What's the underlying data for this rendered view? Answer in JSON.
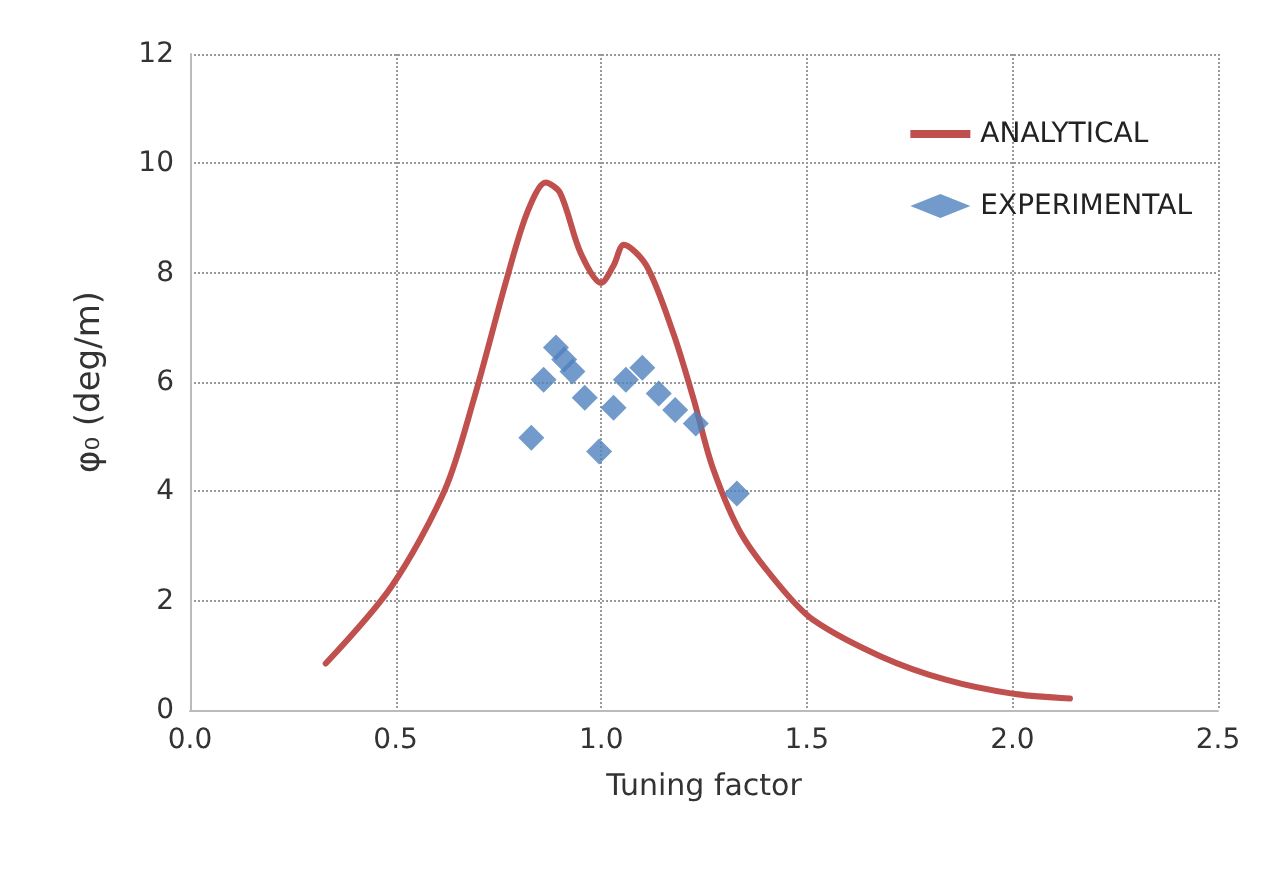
{
  "chart_data": {
    "type": "line",
    "xlabel": "Tuning factor",
    "ylabel": "φ₀ (deg/m)",
    "xlim": [
      0,
      2.5
    ],
    "xticks": [
      {
        "value": 0,
        "label": "0.0"
      },
      {
        "value": 0.5,
        "label": "0.5"
      },
      {
        "value": 1,
        "label": "1.0"
      },
      {
        "value": 1.5,
        "label": "1.5"
      },
      {
        "value": 2,
        "label": "2.0"
      },
      {
        "value": 2.5,
        "label": "2.5"
      }
    ],
    "ylim": [
      0,
      12
    ],
    "yticks": [
      0,
      2,
      4,
      6,
      8,
      10,
      12
    ],
    "grid": true,
    "legend": "top right",
    "series": [
      {
        "name": "ANALYTICAL",
        "color": "#c0504d",
        "marker": "none",
        "line_style": "solid",
        "x": [
          0.33,
          0.49,
          0.62,
          0.69,
          0.77,
          0.82,
          0.865,
          0.9,
          0.95,
          1.0,
          1.03,
          1.055,
          1.11,
          1.175,
          1.225,
          1.27,
          1.34,
          1.435,
          1.515,
          1.68,
          1.84,
          2.0,
          2.14
        ],
        "values": [
          0.85,
          2.26,
          4.03,
          5.68,
          7.88,
          9.1,
          9.65,
          9.46,
          8.36,
          7.81,
          8.13,
          8.51,
          8.13,
          6.9,
          5.68,
          4.46,
          3.23,
          2.26,
          1.65,
          0.98,
          0.55,
          0.3,
          0.21
        ]
      },
      {
        "name": "EXPERIMENTAL",
        "type": "scatter",
        "color": "#4f81bd",
        "marker": "diamond",
        "x": [
          0.83,
          0.86,
          0.89,
          0.91,
          0.93,
          0.96,
          0.995,
          1.03,
          1.06,
          1.1,
          1.14,
          1.18,
          1.23,
          1.33
        ],
        "values": [
          4.98,
          6.04,
          6.63,
          6.41,
          6.19,
          5.71,
          4.73,
          5.53,
          6.04,
          6.26,
          5.79,
          5.49,
          5.24,
          3.96
        ]
      }
    ]
  }
}
